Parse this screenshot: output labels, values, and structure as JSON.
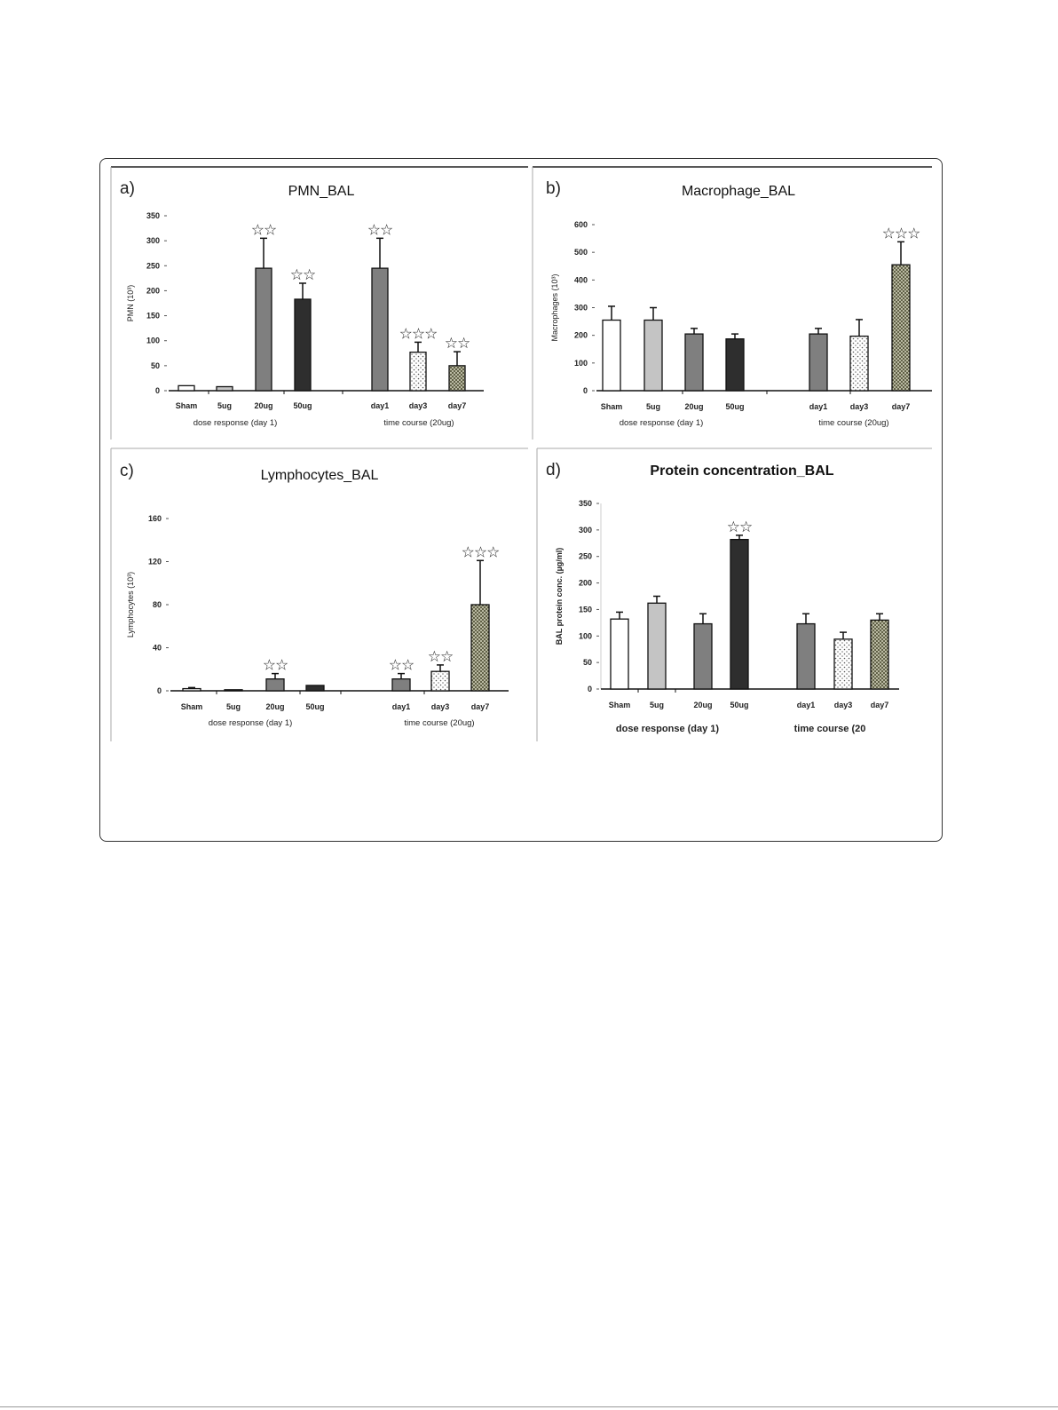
{
  "chart_data": [
    {
      "type": "bar",
      "panel_label": "a)",
      "title": "PMN_BAL",
      "ylabel": "PMN (10³)",
      "ylim": [
        0,
        350
      ],
      "yticks": [
        "0",
        "50",
        "100",
        "150",
        "200",
        "250",
        "300",
        "350"
      ],
      "categories": [
        "Sham",
        "5ug",
        "20ug",
        "50ug",
        "day1",
        "day3",
        "day7"
      ],
      "groups": [
        "dose response (day 1)",
        "time course (20ug)"
      ],
      "values": [
        10,
        8,
        245,
        183,
        245,
        77,
        50
      ],
      "error_upper": [
        10,
        8,
        305,
        215,
        305,
        97,
        78
      ],
      "annotations": [
        "",
        "",
        "**",
        "**",
        "**",
        "***",
        "**"
      ]
    },
    {
      "type": "bar",
      "panel_label": "b)",
      "title": "Macrophage_BAL",
      "ylabel": "Macrophages (10³)",
      "ylim": [
        0,
        600
      ],
      "yticks": [
        "0",
        "100",
        "200",
        "300",
        "400",
        "500",
        "600"
      ],
      "categories": [
        "Sham",
        "5ug",
        "20ug",
        "50ug",
        "day1",
        "day3",
        "day7"
      ],
      "groups": [
        "dose response (day 1)",
        "time course (20ug)"
      ],
      "values": [
        255,
        255,
        205,
        187,
        205,
        197,
        455
      ],
      "error_upper": [
        305,
        300,
        225,
        205,
        225,
        257,
        538
      ],
      "annotations": [
        "",
        "",
        "",
        "",
        "",
        "",
        "***"
      ]
    },
    {
      "type": "bar",
      "panel_label": "c)",
      "title": "Lymphocytes_BAL",
      "ylabel": "Lymphocytes (10³)",
      "ylim": [
        0,
        160
      ],
      "yticks": [
        "0",
        "40",
        "80",
        "120",
        "160"
      ],
      "categories": [
        "Sham",
        "5ug",
        "20ug",
        "50ug",
        "day1",
        "day3",
        "day7"
      ],
      "groups": [
        "dose response (day 1)",
        "time course (20ug)"
      ],
      "values": [
        2,
        1,
        11,
        5,
        11,
        18,
        80
      ],
      "error_upper": [
        3,
        1,
        16,
        5,
        16,
        24,
        121
      ],
      "annotations": [
        "",
        "",
        "**",
        "",
        "**",
        "**",
        "***"
      ]
    },
    {
      "type": "bar",
      "panel_label": "d)",
      "title": "Protein concentration_BAL",
      "ylabel": "BAL protein conc. (µg/ml)",
      "ylim": [
        0,
        350
      ],
      "yticks": [
        "0",
        "50",
        "100",
        "150",
        "200",
        "250",
        "300",
        "350"
      ],
      "categories": [
        "Sham",
        "5ug",
        "20ug",
        "50ug",
        "day1",
        "day3",
        "day7"
      ],
      "groups": [
        "dose response (day 1)",
        "time course (20"
      ],
      "values": [
        132,
        162,
        123,
        282,
        123,
        94,
        130
      ],
      "error_upper": [
        145,
        175,
        142,
        290,
        142,
        107,
        142
      ],
      "annotations": [
        "",
        "",
        "",
        "**",
        "",
        "",
        ""
      ]
    }
  ],
  "colors": {
    "Sham": "#ffffff",
    "5ug": "#c4c4c4",
    "20ug": "#7f7f7f",
    "50ug": "#2e2e2e",
    "day1": "#7f7f7f",
    "day3": "dotted-white",
    "day7": "hatched-olive"
  }
}
